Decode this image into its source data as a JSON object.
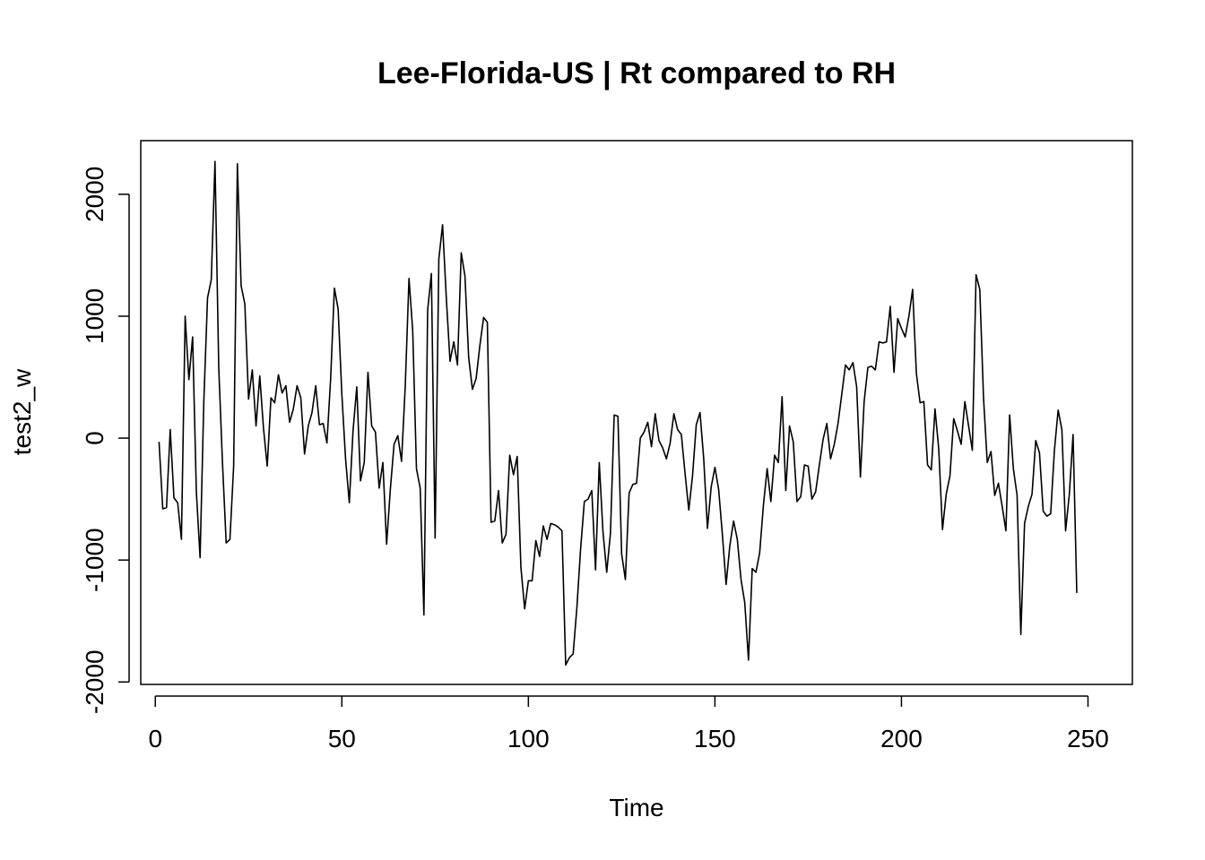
{
  "chart_data": {
    "type": "line",
    "title": "Lee-Florida-US | Rt compared to RH",
    "xlabel": "Time",
    "ylabel": "test2_w",
    "xlim": [
      -3.9,
      261.9
    ],
    "ylim": [
      -2020,
      2440
    ],
    "x_ticks": [
      0,
      50,
      100,
      150,
      200,
      250
    ],
    "y_ticks": [
      -2000,
      -1000,
      0,
      1000,
      2000
    ],
    "x_tick_labels": [
      "0",
      "50",
      "100",
      "150",
      "200",
      "250"
    ],
    "y_tick_labels": [
      "-2000",
      "-1000",
      "0",
      "1000",
      "2000"
    ],
    "grid": false,
    "line_color": "#000000",
    "series": [
      {
        "x_start": 1,
        "x_step": 1,
        "values": [
          -30,
          -580,
          -570,
          70,
          -490,
          -530,
          -830,
          1000,
          480,
          830,
          -440,
          -980,
          300,
          1150,
          1300,
          2270,
          580,
          -200,
          -860,
          -830,
          -230,
          2250,
          1250,
          1100,
          320,
          560,
          100,
          510,
          80,
          -230,
          330,
          290,
          520,
          370,
          430,
          130,
          240,
          430,
          330,
          -130,
          100,
          210,
          430,
          110,
          120,
          -40,
          490,
          1230,
          1060,
          360,
          -170,
          -530,
          60,
          420,
          -350,
          -200,
          540,
          100,
          50,
          -410,
          -200,
          -870,
          -420,
          -50,
          20,
          -190,
          430,
          1310,
          880,
          -250,
          -410,
          -1450,
          1050,
          1350,
          -820,
          1470,
          1750,
          1150,
          630,
          790,
          600,
          1520,
          1330,
          660,
          400,
          490,
          760,
          990,
          950,
          -690,
          -680,
          -430,
          -860,
          -790,
          -140,
          -300,
          -150,
          -1060,
          -1400,
          -1170,
          -1170,
          -840,
          -970,
          -720,
          -830,
          -700,
          -710,
          -730,
          -760,
          -1860,
          -1800,
          -1770,
          -1390,
          -910,
          -520,
          -500,
          -430,
          -1080,
          -200,
          -770,
          -1100,
          -780,
          190,
          180,
          -950,
          -1160,
          -450,
          -380,
          -370,
          0,
          50,
          130,
          -70,
          200,
          -20,
          -80,
          -170,
          -40,
          200,
          70,
          30,
          -290,
          -590,
          -310,
          110,
          210,
          -170,
          -740,
          -400,
          -240,
          -420,
          -790,
          -1200,
          -880,
          -680,
          -830,
          -1160,
          -1350,
          -1820,
          -1070,
          -1100,
          -940,
          -550,
          -250,
          -520,
          -140,
          -200,
          340,
          -430,
          100,
          -30,
          -520,
          -480,
          -220,
          -230,
          -500,
          -440,
          -220,
          -10,
          120,
          -170,
          -50,
          120,
          360,
          600,
          560,
          620,
          420,
          -320,
          300,
          580,
          590,
          560,
          790,
          780,
          790,
          1080,
          540,
          980,
          900,
          830,
          1000,
          1220,
          530,
          290,
          300,
          -220,
          -260,
          240,
          -90,
          -750,
          -460,
          -310,
          160,
          60,
          -50,
          300,
          100,
          -100,
          1340,
          1220,
          330,
          -200,
          -110,
          -470,
          -370,
          -560,
          -760,
          190,
          -250,
          -470,
          -1610,
          -700,
          -560,
          -460,
          -20,
          -120,
          -600,
          -640,
          -620,
          -100,
          230,
          70,
          -760,
          -460,
          30,
          -1270
        ]
      }
    ]
  }
}
